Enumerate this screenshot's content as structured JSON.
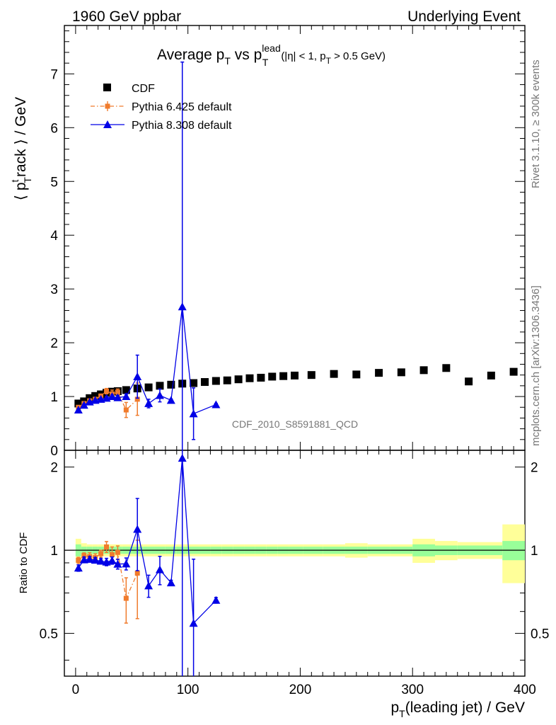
{
  "header": {
    "left": "1960 GeV ppbar",
    "right": "Underlying Event"
  },
  "side_labels": {
    "rivet": "Rivet 3.1.10, ≥ 300k events",
    "mcplots": "mcplots.cern.ch [arXiv:1306.3436]"
  },
  "watermark": "CDF_2010_S8591881_QCD",
  "chart_data": {
    "type": "scatter",
    "title": {
      "main": "Average p",
      "sub1": "T",
      "mid": " vs p",
      "sup": "lead",
      "sub2": "T",
      "tail": "(|η| < 1, p",
      "sub3": "T",
      "end": " > 0.5 GeV)"
    },
    "xlabel": {
      "p": "p",
      "sub": "T",
      "rest": "(leading jet) / GeV"
    },
    "ylabel": {
      "open": "⟨ p",
      "sup": "t",
      "sub": "T",
      "rest": "rack ⟩ / GeV"
    },
    "ratio_ylabel": "Ratio to CDF",
    "xlim": [
      -10,
      400
    ],
    "ylim": [
      0,
      7.9
    ],
    "ratio_ylim": [
      0.35,
      2.3
    ],
    "ratio_scale": "log",
    "x_ticks": [
      "0",
      "100",
      "200",
      "300",
      "400"
    ],
    "y_ticks": [
      "0",
      "1",
      "2",
      "3",
      "4",
      "5",
      "6",
      "7"
    ],
    "ratio_ticks": [
      "0.5",
      "1",
      "2"
    ],
    "legend_position": "top-left",
    "series": [
      {
        "name": "CDF",
        "color": "#000000",
        "marker": "square",
        "x": [
          2.5,
          7.5,
          12.5,
          17.5,
          22.5,
          27.5,
          32.5,
          37.5,
          45,
          55,
          65,
          75,
          85,
          95,
          105,
          115,
          125,
          135,
          145,
          155,
          165,
          175,
          185,
          195,
          210,
          230,
          250,
          270,
          290,
          310,
          330,
          350,
          370,
          390
        ],
        "y": [
          0.87,
          0.91,
          0.97,
          1.01,
          1.04,
          1.07,
          1.09,
          1.1,
          1.12,
          1.15,
          1.17,
          1.2,
          1.22,
          1.24,
          1.25,
          1.27,
          1.29,
          1.3,
          1.32,
          1.34,
          1.35,
          1.37,
          1.38,
          1.39,
          1.4,
          1.42,
          1.41,
          1.44,
          1.45,
          1.49,
          1.53,
          1.28,
          1.39,
          1.46
        ],
        "band_inner": [
          0.05,
          0.03,
          0.03,
          0.03,
          0.03,
          0.03,
          0.03,
          0.03,
          0.03,
          0.03,
          0.03,
          0.03,
          0.03,
          0.03,
          0.03,
          0.03,
          0.03,
          0.03,
          0.03,
          0.03,
          0.03,
          0.03,
          0.03,
          0.03,
          0.03,
          0.03,
          0.03,
          0.03,
          0.03,
          0.05,
          0.04,
          0.04,
          0.04,
          0.08
        ],
        "band_outer": [
          0.1,
          0.06,
          0.05,
          0.05,
          0.05,
          0.05,
          0.05,
          0.05,
          0.05,
          0.05,
          0.05,
          0.05,
          0.05,
          0.05,
          0.05,
          0.05,
          0.05,
          0.05,
          0.05,
          0.05,
          0.05,
          0.05,
          0.05,
          0.05,
          0.05,
          0.05,
          0.06,
          0.05,
          0.05,
          0.1,
          0.08,
          0.07,
          0.07,
          0.24
        ]
      },
      {
        "name": "Pythia 6.425 default",
        "color": "#f07b2c",
        "marker": "small-square",
        "line": "dash-dot",
        "x": [
          2.5,
          7.5,
          12.5,
          17.5,
          22.5,
          27.5,
          32.5,
          37.5,
          45,
          55
        ],
        "y": [
          0.8,
          0.87,
          0.92,
          0.95,
          1.01,
          1.1,
          1.05,
          1.08,
          0.75,
          0.95
        ],
        "err": [
          0.02,
          0.02,
          0.03,
          0.03,
          0.03,
          0.05,
          0.07,
          0.06,
          0.14,
          0.3
        ]
      },
      {
        "name": "Pythia 8.308 default",
        "color": "#0000e6",
        "marker": "triangle",
        "line": "solid",
        "x": [
          2.5,
          7.5,
          12.5,
          17.5,
          22.5,
          27.5,
          32.5,
          37.5,
          45,
          55,
          65,
          75,
          85,
          95,
          105,
          125
        ],
        "y": [
          0.75,
          0.84,
          0.9,
          0.93,
          0.95,
          0.97,
          1.0,
          0.98,
          1.0,
          1.37,
          0.87,
          1.02,
          0.93,
          2.67,
          0.68,
          0.85
        ],
        "err": [
          0.02,
          0.02,
          0.02,
          0.02,
          0.02,
          0.03,
          0.03,
          0.04,
          0.05,
          0.4,
          0.08,
          0.12,
          0.02,
          4.55,
          0.48,
          0.02
        ]
      }
    ]
  }
}
